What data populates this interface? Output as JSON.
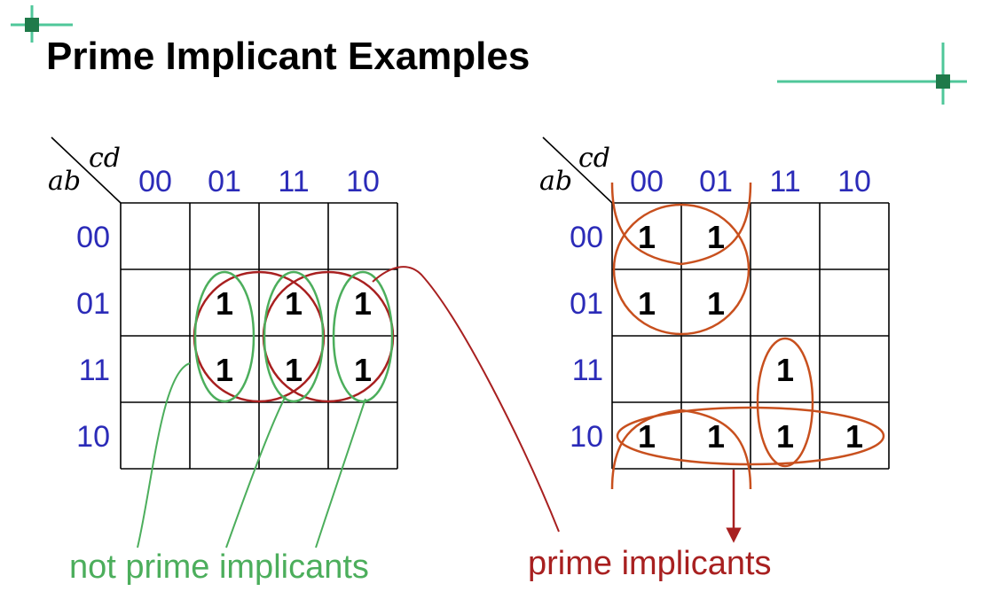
{
  "title": "Prime Implicant Examples",
  "colors": {
    "axis_labels": "#2b2bb8",
    "not_prime": "#4cae5c",
    "prime_left": "#a82020",
    "prime_right": "#c8501e",
    "decoration": "#1f7a4a"
  },
  "maps": [
    {
      "row_var": "ab",
      "col_var": "cd",
      "col_labels": [
        "00",
        "01",
        "11",
        "10"
      ],
      "row_labels": [
        "00",
        "01",
        "11",
        "10"
      ],
      "cells": [
        [
          "",
          "",
          "",
          ""
        ],
        [
          "",
          "1",
          "1",
          "1"
        ],
        [
          "",
          "1",
          "1",
          "1"
        ],
        [
          "",
          "",
          "",
          ""
        ]
      ]
    },
    {
      "row_var": "ab",
      "col_var": "cd",
      "col_labels": [
        "00",
        "01",
        "11",
        "10"
      ],
      "row_labels": [
        "00",
        "01",
        "11",
        "10"
      ],
      "cells": [
        [
          "1",
          "1",
          "",
          ""
        ],
        [
          "1",
          "1",
          "",
          ""
        ],
        [
          "",
          "",
          "1",
          ""
        ],
        [
          "1",
          "1",
          "1",
          "1"
        ]
      ]
    }
  ],
  "captions": {
    "not_prime": "not prime implicants",
    "prime": "prime implicants"
  }
}
